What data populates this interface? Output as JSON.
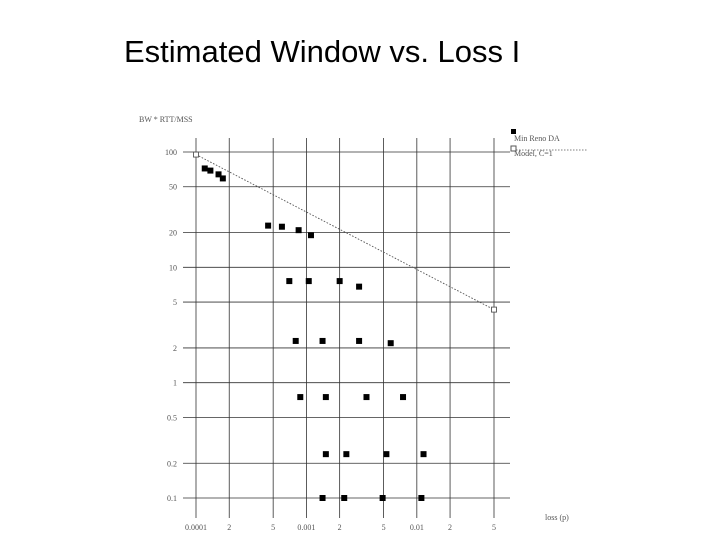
{
  "slide": {
    "title": "Estimated Window vs. Loss I"
  },
  "colors": {
    "grid": "#333333",
    "marker": "#000000",
    "model_line": "#555555",
    "model_marker_stroke": "#555555"
  },
  "chart_data": {
    "type": "scatter",
    "title": "",
    "xlabel": "loss (p)",
    "ylabel": "BW * RTT/MSS",
    "x_scale": "log",
    "y_scale": "log",
    "xlim": [
      0.0001,
      0.05
    ],
    "ylim": [
      0.1,
      100
    ],
    "grid": true,
    "legend_position": "top-right",
    "x_ticks": [
      {
        "value": 0.0001,
        "label": "0.0001"
      },
      {
        "value": 0.0002,
        "label": "2"
      },
      {
        "value": 0.0005,
        "label": "5"
      },
      {
        "value": 0.001,
        "label": "0.001"
      },
      {
        "value": 0.002,
        "label": "2"
      },
      {
        "value": 0.005,
        "label": "5"
      },
      {
        "value": 0.01,
        "label": "0.01"
      },
      {
        "value": 0.02,
        "label": "2"
      },
      {
        "value": 0.05,
        "label": "5"
      }
    ],
    "y_ticks": [
      {
        "value": 100,
        "label": "100"
      },
      {
        "value": 50,
        "label": "50"
      },
      {
        "value": 20,
        "label": "20"
      },
      {
        "value": 10,
        "label": "10"
      },
      {
        "value": 5,
        "label": "5"
      },
      {
        "value": 2,
        "label": "2"
      },
      {
        "value": 1,
        "label": "1"
      },
      {
        "value": 0.5,
        "label": "0.5"
      },
      {
        "value": 0.2,
        "label": "0.2"
      },
      {
        "value": 0.1,
        "label": "0.1"
      }
    ],
    "series": [
      {
        "name": "Min Reno DA",
        "marker": "filled-square",
        "points": [
          {
            "x": 0.00012,
            "y": 72
          },
          {
            "x": 0.000135,
            "y": 69
          },
          {
            "x": 0.00016,
            "y": 64
          },
          {
            "x": 0.000175,
            "y": 59
          },
          {
            "x": 0.00045,
            "y": 23
          },
          {
            "x": 0.0006,
            "y": 22.5
          },
          {
            "x": 0.00085,
            "y": 21
          },
          {
            "x": 0.0011,
            "y": 19
          },
          {
            "x": 0.0007,
            "y": 7.6
          },
          {
            "x": 0.00105,
            "y": 7.6
          },
          {
            "x": 0.002,
            "y": 7.6
          },
          {
            "x": 0.003,
            "y": 6.8
          },
          {
            "x": 0.0008,
            "y": 2.3
          },
          {
            "x": 0.0014,
            "y": 2.3
          },
          {
            "x": 0.003,
            "y": 2.3
          },
          {
            "x": 0.0058,
            "y": 2.2
          },
          {
            "x": 0.00088,
            "y": 0.75
          },
          {
            "x": 0.0015,
            "y": 0.75
          },
          {
            "x": 0.0035,
            "y": 0.75
          },
          {
            "x": 0.0075,
            "y": 0.75
          },
          {
            "x": 0.0015,
            "y": 0.24
          },
          {
            "x": 0.0023,
            "y": 0.24
          },
          {
            "x": 0.0053,
            "y": 0.24
          },
          {
            "x": 0.0115,
            "y": 0.24
          },
          {
            "x": 0.0014,
            "y": 0.1
          },
          {
            "x": 0.0022,
            "y": 0.1
          },
          {
            "x": 0.0049,
            "y": 0.1
          },
          {
            "x": 0.011,
            "y": 0.1
          }
        ]
      },
      {
        "name": "Model, C=1",
        "marker": "open-square",
        "line": "dotted",
        "points": [
          {
            "x": 0.0001,
            "y": 95
          },
          {
            "x": 0.05,
            "y": 4.3
          }
        ]
      }
    ]
  }
}
